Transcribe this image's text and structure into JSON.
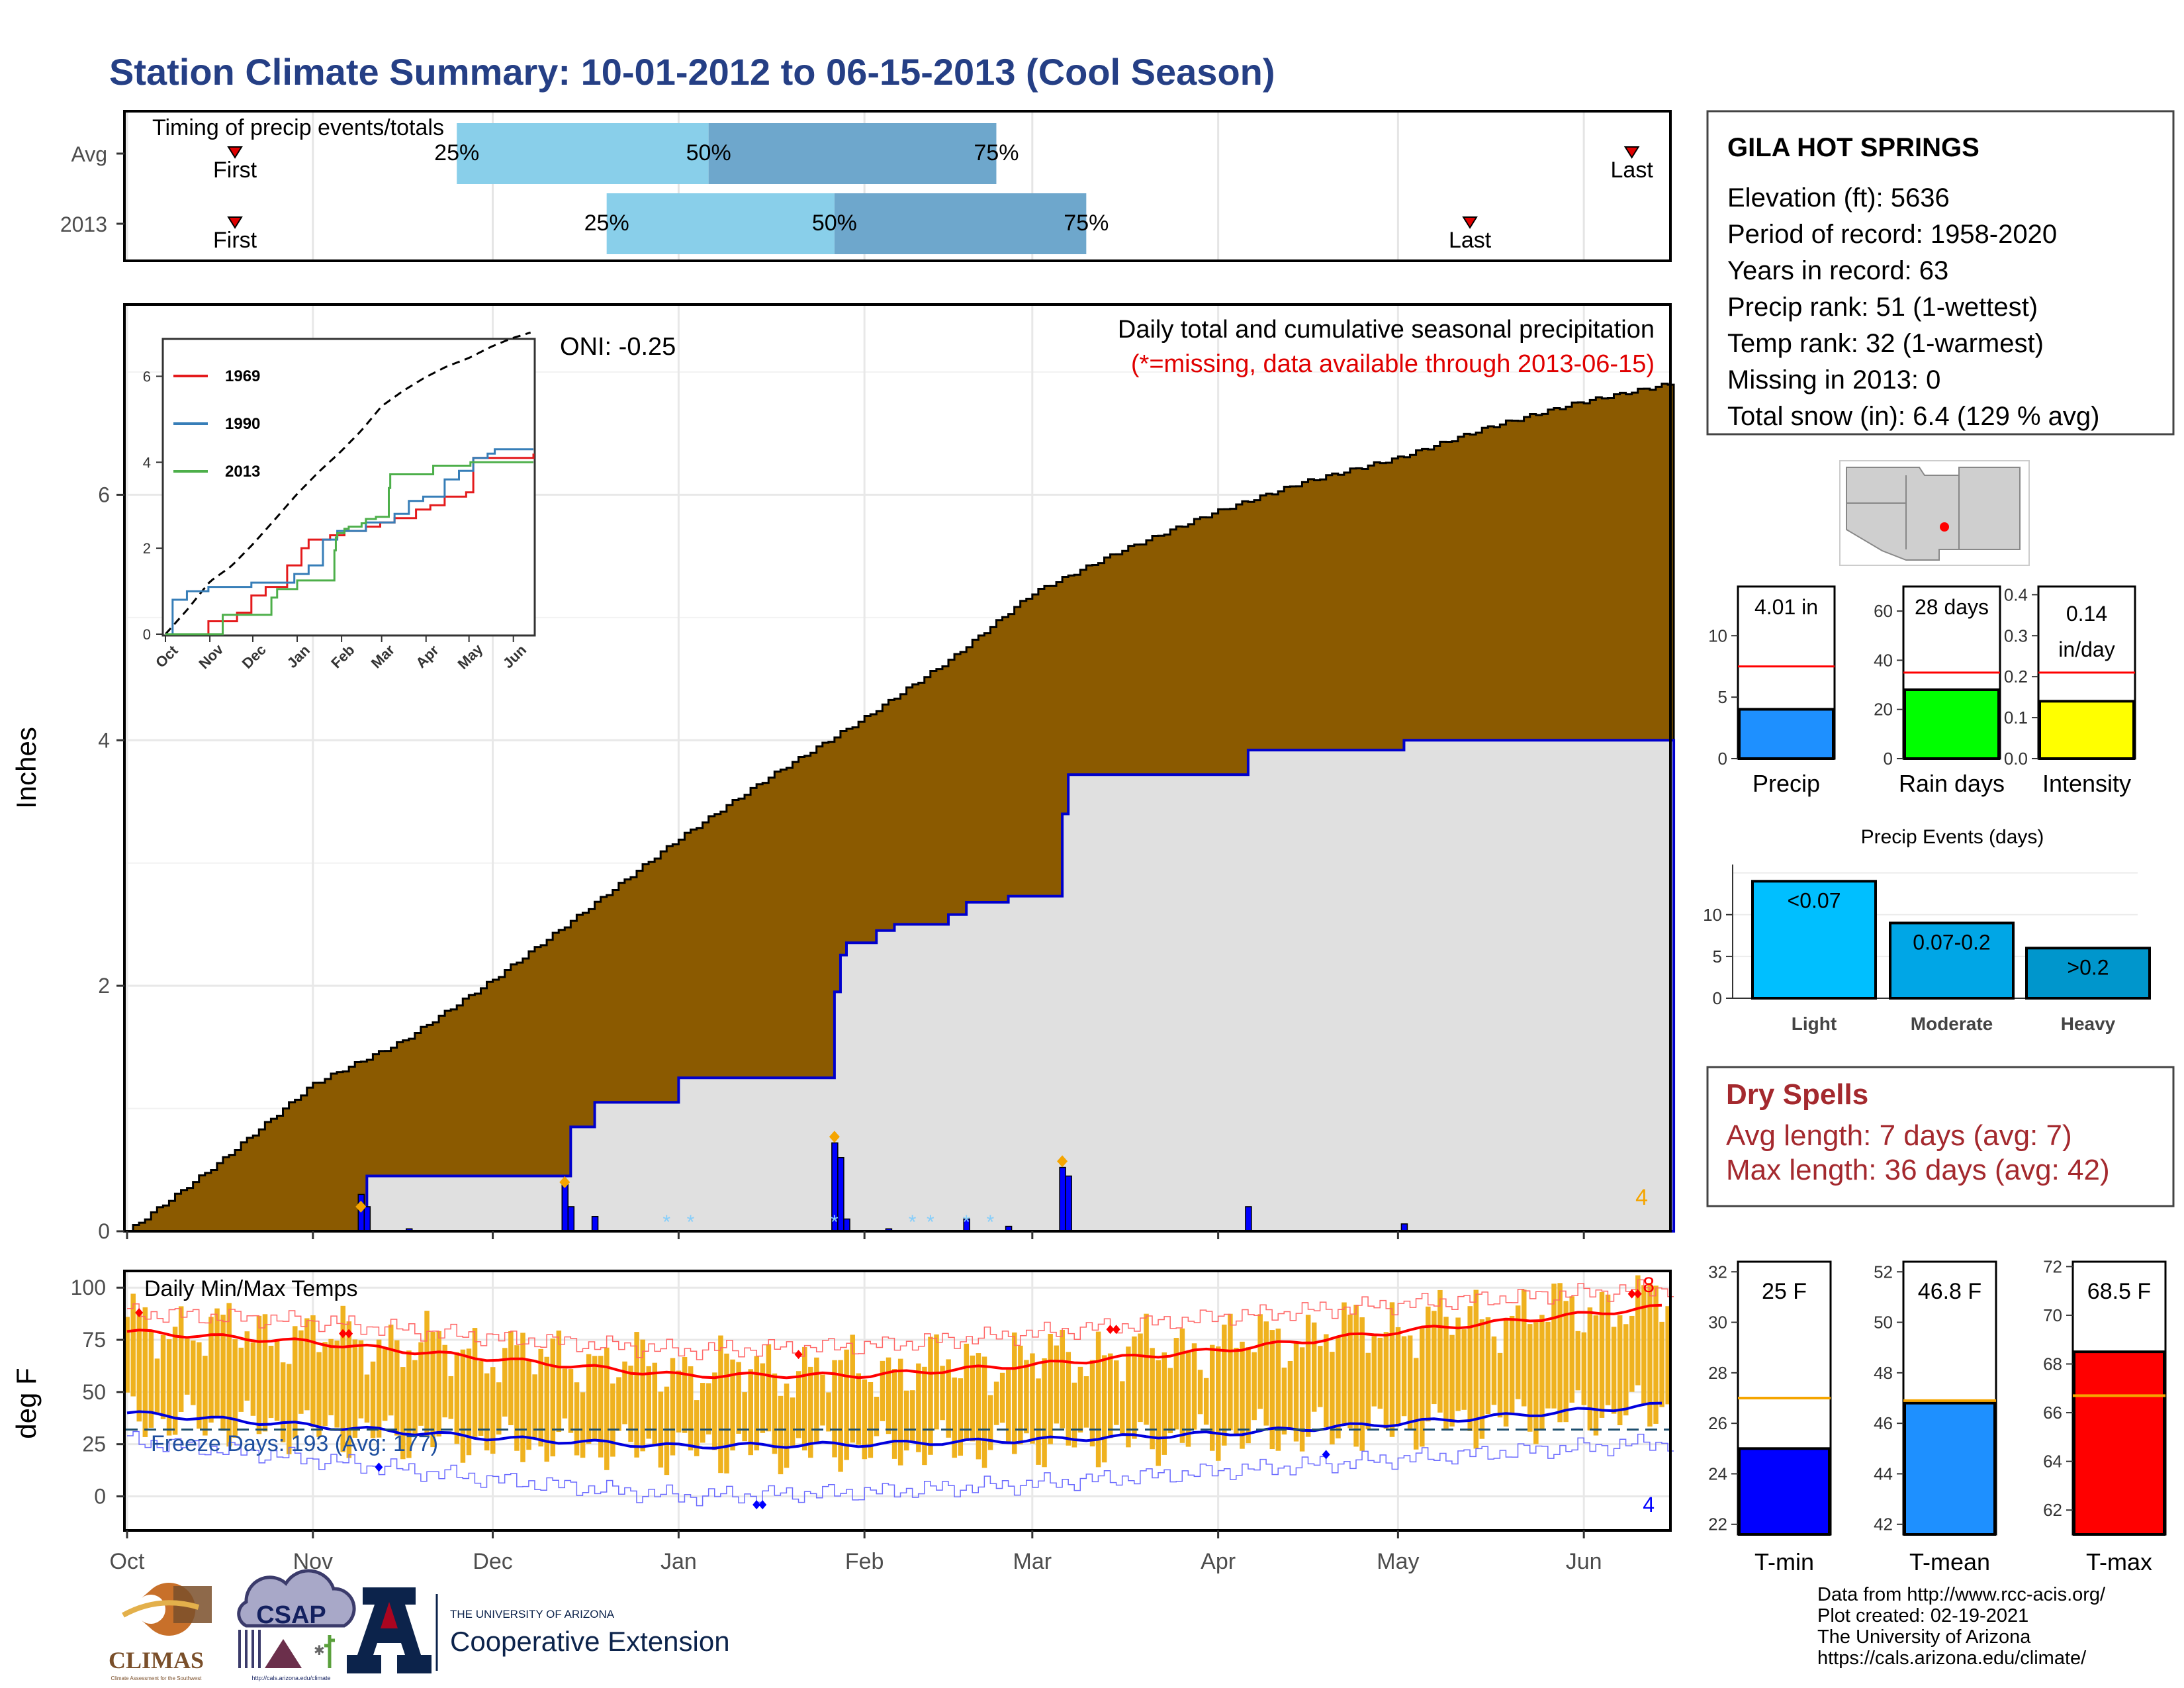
{
  "title": "Station Climate Summary: 10-01-2012 to 06-15-2013 (Cool Season)",
  "months": [
    "Oct",
    "Nov",
    "Dec",
    "Jan",
    "Feb",
    "Mar",
    "Apr",
    "May",
    "Jun"
  ],
  "timing": {
    "label": "Timing of precip events/totals",
    "rows": [
      {
        "name": "Avg",
        "first": "First",
        "last": "Last",
        "p25": "25%",
        "p50": "50%",
        "p75": "75%",
        "first_day": 18,
        "last_day": 251,
        "q25_day": 55,
        "q50_day": 97,
        "q75_day": 145
      },
      {
        "name": "2013",
        "first": "First",
        "last": "Last",
        "p25": "25%",
        "p50": "50%",
        "p75": "75%",
        "first_day": 18,
        "last_day": 224,
        "q25_day": 80,
        "q50_day": 118,
        "q75_day": 160
      }
    ]
  },
  "precip_panel": {
    "ylabel": "Inches",
    "note1": "Daily total and cumulative seasonal precipitation",
    "note2": "(*=missing, data available through 2013-06-15)",
    "oni": "ONI: -0.25",
    "corner_count": "4",
    "yticks": [
      "0",
      "2",
      "4",
      "6"
    ]
  },
  "inset": {
    "yticks": [
      "0",
      "2",
      "4",
      "6"
    ],
    "months": [
      "Oct",
      "Nov",
      "Dec",
      "Jan",
      "Feb",
      "Mar",
      "Apr",
      "May",
      "Jun"
    ],
    "legend": [
      {
        "name": "1969",
        "color": "#e41a1c"
      },
      {
        "name": "1990",
        "color": "#377eb8"
      },
      {
        "name": "2013",
        "color": "#4daf4a"
      }
    ]
  },
  "temp_panel": {
    "ylabel": "deg F",
    "label": "Daily Min/Max Temps",
    "freeze": "Freeze Days: 193 (Avg: 177)",
    "yticks": [
      "0",
      "25",
      "50",
      "75",
      "100"
    ],
    "hi_count": "8",
    "lo_count": "4"
  },
  "station": {
    "name": "GILA HOT SPRINGS",
    "lines": [
      "Elevation (ft): 5636",
      "Period of record: 1958-2020",
      "Years in record: 63",
      "Precip rank: 51 (1-wettest)",
      "Temp rank: 32 (1-warmest)",
      "Missing in 2013: 0",
      "Total snow (in): 6.4 (129 % avg)"
    ]
  },
  "mini_bars": [
    {
      "name": "Precip",
      "value": 4.01,
      "avg": 7.5,
      "label": "4.01 in",
      "color": "#1e90ff",
      "ymax": 14,
      "yticks": [
        "0",
        "5",
        "10"
      ],
      "tickvals": [
        0,
        5,
        10
      ]
    },
    {
      "name": "Rain days",
      "value": 28,
      "avg": 35,
      "label": "28 days",
      "color": "#00ff00",
      "ymax": 70,
      "yticks": [
        "0",
        "20",
        "40",
        "60"
      ],
      "tickvals": [
        0,
        20,
        40,
        60
      ]
    },
    {
      "name": "Intensity",
      "value": 0.14,
      "avg": 0.21,
      "label": "0.14",
      "label2": "in/day",
      "color": "#ffff00",
      "ymax": 0.42,
      "yticks": [
        "0.0",
        "0.1",
        "0.2",
        "0.3",
        "0.4"
      ],
      "tickvals": [
        0,
        0.1,
        0.2,
        0.3,
        0.4
      ]
    }
  ],
  "events": {
    "title": "Precip Events (days)",
    "yticks": [
      "0",
      "5",
      "10"
    ],
    "bars": [
      {
        "name": "Light",
        "label": "<0.07",
        "value": 14,
        "color": "#00bfff"
      },
      {
        "name": "Moderate",
        "label": "0.07-0.2",
        "value": 9,
        "color": "#00a6e6"
      },
      {
        "name": "Heavy",
        "label": ">0.2",
        "value": 6,
        "color": "#0096cc"
      }
    ]
  },
  "dry_spells": {
    "title": "Dry Spells",
    "avg": "Avg length: 7 days (avg: 7)",
    "max": "Max length: 36 days (avg: 42)"
  },
  "temp_bars": [
    {
      "name": "T-min",
      "label": "25 F",
      "value": 25,
      "avg": 27,
      "color": "#0000ff",
      "ymin": 21.6,
      "ymax": 32.4,
      "yticks": [
        "22",
        "24",
        "26",
        "28",
        "30",
        "32"
      ],
      "tickvals": [
        22,
        24,
        26,
        28,
        30,
        32
      ]
    },
    {
      "name": "T-mean",
      "label": "46.8 F",
      "value": 46.8,
      "avg": 46.9,
      "color": "#1e90ff",
      "ymin": 41.6,
      "ymax": 52.4,
      "yticks": [
        "42",
        "44",
        "46",
        "48",
        "50",
        "52"
      ],
      "tickvals": [
        42,
        44,
        46,
        48,
        50,
        52
      ]
    },
    {
      "name": "T-max",
      "label": "68.5 F",
      "value": 68.5,
      "avg": 66.7,
      "color": "#ff0000",
      "ymin": 61.0,
      "ymax": 72.2,
      "yticks": [
        "62",
        "64",
        "66",
        "68",
        "70",
        "72"
      ],
      "tickvals": [
        62,
        64,
        66,
        68,
        70,
        72
      ]
    }
  ],
  "footer": [
    "Data from http://www.rcc-acis.org/",
    "Plot created: 02-19-2021",
    "The University of Arizona",
    "https://cals.arizona.edu/climate/"
  ],
  "logos": {
    "climas": "CLIMAS",
    "climas_sub": "Climate Assessment for the Southwest",
    "csap": "CSAP",
    "csap_url": "http://cals.arizona.edu/climate",
    "ua_small": "THE UNIVERSITY OF ARIZONA",
    "ua_big": "Cooperative Extension"
  },
  "chart_data": [
    {
      "type": "line",
      "title": "Daily total and cumulative seasonal precipitation",
      "ylabel": "Inches",
      "ylim": [
        0,
        7.5
      ],
      "x_unit": "day of season starting Oct 1",
      "series": [
        {
          "name": "cumulative average",
          "kind": "area",
          "x": [
            0,
            15,
            31,
            46,
            61,
            76,
            92,
            107,
            122,
            137,
            151,
            166,
            181,
            196,
            212,
            227,
            242,
            257
          ],
          "values": [
            0,
            0.55,
            1.2,
            1.55,
            2.05,
            2.6,
            3.2,
            3.7,
            4.15,
            4.65,
            5.2,
            5.55,
            5.85,
            6.1,
            6.3,
            6.55,
            6.75,
            6.9
          ]
        },
        {
          "name": "2013",
          "kind": "step",
          "x": [
            0,
            39,
            40,
            73,
            74,
            78,
            92,
            113,
            118,
            119,
            120,
            125,
            127,
            128,
            137,
            140,
            147,
            155,
            156,
            157,
            187,
            213,
            257
          ],
          "values": [
            0,
            0,
            0.45,
            0.45,
            0.85,
            1.05,
            1.25,
            1.25,
            1.95,
            2.25,
            2.35,
            2.45,
            2.45,
            2.5,
            2.58,
            2.68,
            2.73,
            2.73,
            3.4,
            3.72,
            3.92,
            4.0,
            4.0
          ]
        }
      ],
      "daily": [
        {
          "x": 39,
          "value": 0.3
        },
        {
          "x": 40,
          "value": 0.2
        },
        {
          "x": 47,
          "value": 0.02
        },
        {
          "x": 73,
          "value": 0.38
        },
        {
          "x": 74,
          "value": 0.2
        },
        {
          "x": 78,
          "value": 0.12
        },
        {
          "x": 118,
          "value": 0.72
        },
        {
          "x": 119,
          "value": 0.6
        },
        {
          "x": 120,
          "value": 0.1
        },
        {
          "x": 127,
          "value": 0.02
        },
        {
          "x": 140,
          "value": 0.1
        },
        {
          "x": 147,
          "value": 0.04
        },
        {
          "x": 156,
          "value": 0.52
        },
        {
          "x": 157,
          "value": 0.45
        },
        {
          "x": 187,
          "value": 0.2
        },
        {
          "x": 213,
          "value": 0.06
        }
      ],
      "missing_marks": [
        90,
        94,
        118,
        131,
        134,
        140,
        144
      ],
      "marks": [
        {
          "x": 39,
          "value": 0.2
        },
        {
          "x": 73,
          "value": 0.4
        },
        {
          "x": 118,
          "value": 0.77
        },
        {
          "x": 156,
          "value": 0.57
        }
      ]
    },
    {
      "type": "line",
      "title": "Daily Min/Max Temps",
      "ylabel": "deg F",
      "ylim": [
        -15,
        105
      ],
      "freeze_line": 32,
      "series": [
        {
          "name": "avg max",
          "x": [
            0,
            30,
            61,
            92,
            123,
            151,
            182,
            212,
            257
          ],
          "values": [
            79,
            74,
            66,
            58,
            58,
            63,
            70,
            79,
            91
          ]
        },
        {
          "name": "avg min",
          "x": [
            0,
            30,
            61,
            92,
            123,
            151,
            182,
            212,
            257
          ],
          "values": [
            40,
            34,
            28,
            24,
            25,
            27,
            30,
            35,
            44
          ]
        },
        {
          "name": "record max",
          "x": [
            0,
            30,
            61,
            92,
            123,
            151,
            182,
            212,
            257
          ],
          "values": [
            88,
            84,
            76,
            70,
            72,
            78,
            86,
            92,
            100
          ]
        },
        {
          "name": "record min",
          "x": [
            0,
            30,
            61,
            92,
            123,
            151,
            182,
            212,
            257
          ],
          "values": [
            27,
            18,
            8,
            0,
            2,
            6,
            12,
            18,
            26
          ]
        }
      ],
      "record_high_marks": [
        {
          "x": 2,
          "value": 88
        },
        {
          "x": 36,
          "value": 78
        },
        {
          "x": 37,
          "value": 78
        },
        {
          "x": 112,
          "value": 68
        },
        {
          "x": 164,
          "value": 80
        },
        {
          "x": 165,
          "value": 80
        },
        {
          "x": 251,
          "value": 97
        },
        {
          "x": 252,
          "value": 97
        }
      ],
      "record_low_marks": [
        {
          "x": 42,
          "value": 14
        },
        {
          "x": 105,
          "value": -4
        },
        {
          "x": 106,
          "value": -4
        },
        {
          "x": 200,
          "value": 20
        }
      ]
    }
  ]
}
